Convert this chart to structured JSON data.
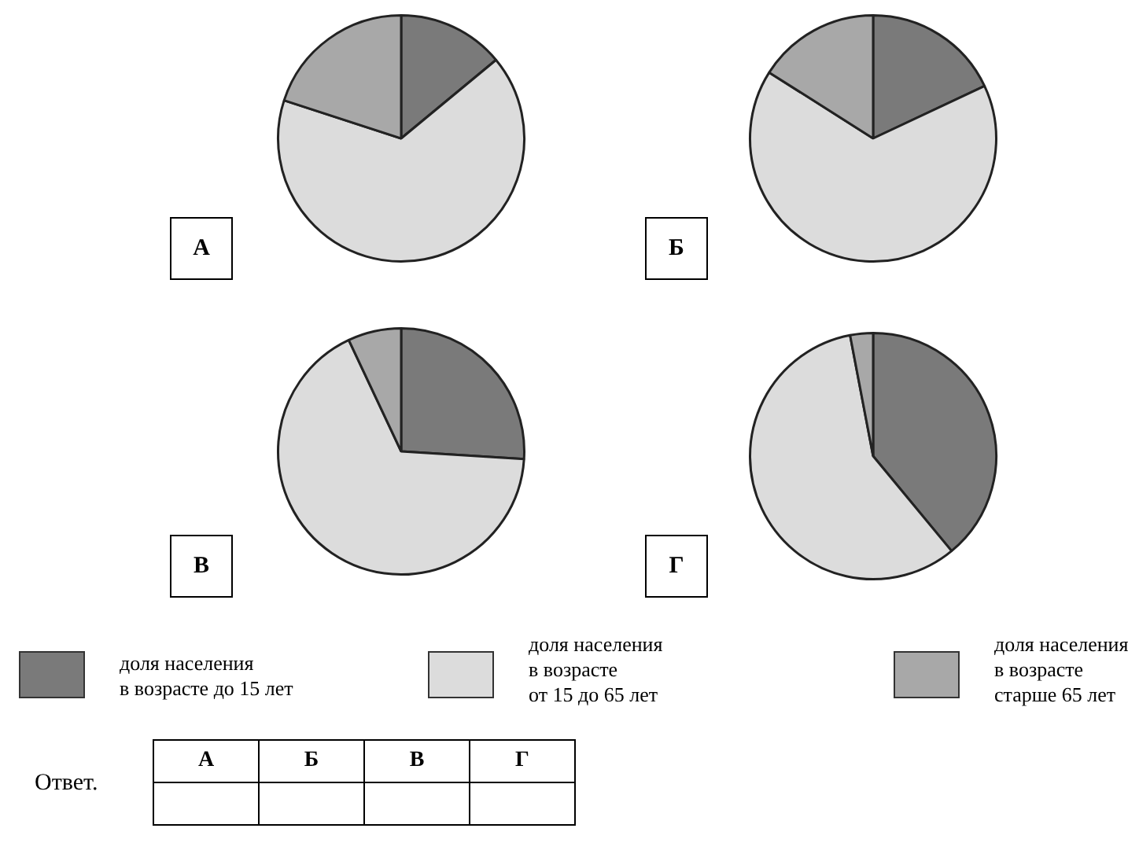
{
  "chart_data": [
    {
      "type": "pie",
      "title": "А",
      "categories": [
        "доля населения\nв возрасте до 15 лет",
        "доля населения\nв возрасте\nот 15 до 65 лет",
        "доля населения\nв возрасте\nстарше 65 лет"
      ],
      "values": [
        14,
        66,
        20
      ],
      "colors": [
        "#7a7a7a",
        "#dcdcdc",
        "#a8a8a8"
      ],
      "legend": "bottom"
    },
    {
      "type": "pie",
      "title": "Б",
      "categories": [
        null,
        null,
        null
      ],
      "values": [
        18,
        66,
        16
      ],
      "colors": [
        "#7a7a7a",
        "#dcdcdc",
        "#a8a8a8"
      ]
    },
    {
      "type": "pie",
      "title": "В",
      "categories": [
        null,
        null,
        null
      ],
      "values": [
        26,
        67,
        7
      ],
      "colors": [
        "#7a7a7a",
        "#dcdcdc",
        "#a8a8a8"
      ]
    },
    {
      "type": "pie",
      "title": "Г",
      "categories": [
        null,
        null,
        null
      ],
      "values": [
        39,
        58,
        3
      ],
      "colors": [
        "#7a7a7a",
        "#dcdcdc",
        "#a8a8a8"
      ],
      "annotations": [
        "Ответ."
      ]
    }
  ]
}
